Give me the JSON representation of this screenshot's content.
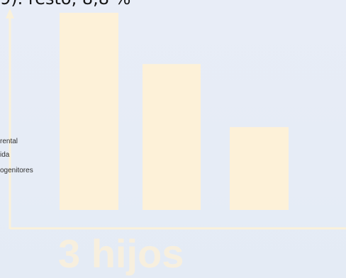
{
  "header": {
    "top_text": "9). resto, 8,8 %"
  },
  "legend": {
    "items": [
      "rental",
      "ida",
      "ogenitores"
    ]
  },
  "chart_data": {
    "type": "bar",
    "title": "3 hijos",
    "categories": [
      "",
      "",
      ""
    ],
    "values": [
      100,
      74,
      42
    ],
    "ylim": [
      0,
      100
    ],
    "xlabel": "",
    "ylabel": "",
    "grid": false,
    "bar_color": "#fdf1d8",
    "axis_color": "#faf1da"
  }
}
